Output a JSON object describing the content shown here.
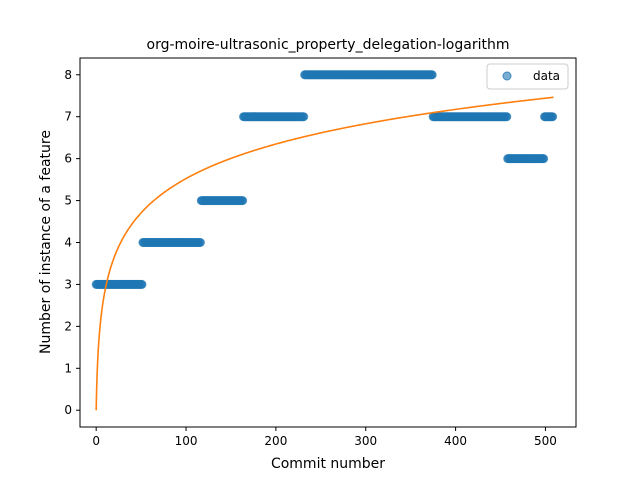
{
  "chart_data": {
    "type": "scatter",
    "title": "org-moire-ultrasonic_property_delegation-logarithm",
    "xlabel": "Commit number",
    "ylabel": "Number of instance of a feature",
    "xlim": [
      -18,
      534
    ],
    "ylim": [
      -0.4,
      8.4
    ],
    "xticks": [
      0,
      100,
      200,
      300,
      400,
      500
    ],
    "yticks": [
      0,
      1,
      2,
      3,
      4,
      5,
      6,
      7,
      8
    ],
    "legend": {
      "entries": [
        "data"
      ],
      "placement": "top-right"
    },
    "grid": false,
    "colors": {
      "data": "#1f77b4",
      "fit": "#ff7f0e"
    },
    "series": [
      {
        "name": "data",
        "kind": "scatter",
        "segments": [
          {
            "x_start": 0,
            "x_end": 52,
            "y": 3
          },
          {
            "x_start": 52,
            "x_end": 117,
            "y": 4
          },
          {
            "x_start": 117,
            "x_end": 164,
            "y": 5
          },
          {
            "x_start": 164,
            "x_end": 232,
            "y": 7
          },
          {
            "x_start": 232,
            "x_end": 375,
            "y": 8
          },
          {
            "x_start": 375,
            "x_end": 458,
            "y": 7
          },
          {
            "x_start": 458,
            "x_end": 499,
            "y": 6
          },
          {
            "x_start": 499,
            "x_end": 509,
            "y": 7
          }
        ]
      },
      {
        "kind": "line",
        "function": "a*ln(x+1)",
        "a": 1.197,
        "x_range": [
          0,
          509
        ]
      }
    ]
  }
}
